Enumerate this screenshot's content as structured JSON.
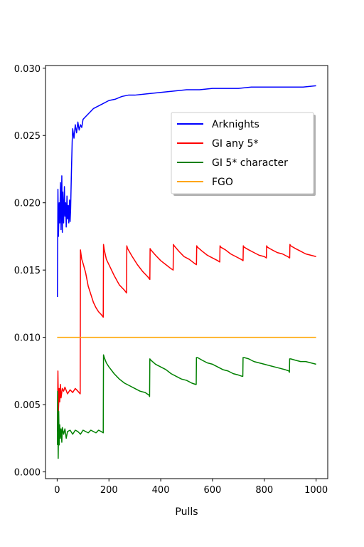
{
  "chart_data": {
    "type": "line",
    "title": "",
    "xlabel": "Pulls",
    "ylabel": "",
    "xlim": [
      -45,
      1045
    ],
    "ylim": [
      -0.0005,
      0.0302
    ],
    "xticks": [
      0,
      200,
      400,
      600,
      800,
      1000
    ],
    "xtick_labels": [
      "0",
      "200",
      "400",
      "600",
      "800",
      "1000"
    ],
    "yticks": [
      0.0,
      0.005,
      0.01,
      0.015,
      0.02,
      0.025,
      0.03
    ],
    "ytick_labels": [
      "0.000",
      "0.005",
      "0.010",
      "0.015",
      "0.020",
      "0.025",
      "0.030"
    ],
    "grid": false,
    "legend": {
      "position": "upper-right",
      "entries": [
        "Arknights",
        "GI any 5*",
        "GI 5* character",
        "FGO"
      ]
    },
    "series": [
      {
        "name": "Arknights",
        "color": "#0000ff",
        "x": [
          1,
          3,
          5,
          8,
          10,
          13,
          15,
          18,
          20,
          22,
          25,
          28,
          30,
          33,
          35,
          38,
          40,
          43,
          45,
          48,
          50,
          52,
          55,
          58,
          60,
          65,
          70,
          75,
          80,
          85,
          90,
          95,
          100,
          110,
          120,
          130,
          140,
          150,
          160,
          170,
          180,
          190,
          200,
          225,
          250,
          275,
          300,
          350,
          400,
          450,
          500,
          550,
          600,
          650,
          700,
          750,
          800,
          850,
          900,
          950,
          1000
        ],
        "y": [
          0.013,
          0.021,
          0.0175,
          0.02,
          0.0185,
          0.0215,
          0.018,
          0.022,
          0.0178,
          0.0208,
          0.0185,
          0.0212,
          0.019,
          0.02,
          0.0182,
          0.0205,
          0.0188,
          0.0198,
          0.0185,
          0.0202,
          0.0186,
          0.0195,
          0.0222,
          0.0245,
          0.0255,
          0.0248,
          0.0258,
          0.0252,
          0.026,
          0.0254,
          0.0258,
          0.0256,
          0.0262,
          0.0264,
          0.0266,
          0.0268,
          0.027,
          0.0271,
          0.0272,
          0.0273,
          0.0274,
          0.0275,
          0.0276,
          0.0277,
          0.0279,
          0.028,
          0.028,
          0.0281,
          0.0282,
          0.0283,
          0.0284,
          0.0284,
          0.0285,
          0.0285,
          0.0285,
          0.0286,
          0.0286,
          0.0286,
          0.0286,
          0.0286,
          0.0287
        ]
      },
      {
        "name": "GI any 5*",
        "color": "#ff0000",
        "x": [
          1,
          3,
          5,
          8,
          10,
          13,
          15,
          20,
          25,
          30,
          40,
          50,
          60,
          70,
          80,
          89,
          90,
          92,
          95,
          100,
          110,
          120,
          130,
          140,
          150,
          160,
          170,
          178,
          179,
          182,
          190,
          200,
          220,
          240,
          260,
          268,
          269,
          272,
          290,
          310,
          330,
          350,
          358,
          359,
          362,
          380,
          400,
          420,
          440,
          448,
          449,
          452,
          470,
          490,
          510,
          530,
          538,
          539,
          542,
          560,
          580,
          600,
          620,
          628,
          629,
          632,
          650,
          670,
          690,
          710,
          718,
          719,
          722,
          740,
          760,
          780,
          800,
          808,
          809,
          812,
          830,
          850,
          870,
          890,
          898,
          899,
          902,
          920,
          940,
          960,
          980,
          1000
        ],
        "y": [
          0.003,
          0.0075,
          0.0045,
          0.0062,
          0.0052,
          0.0065,
          0.0055,
          0.0062,
          0.006,
          0.0063,
          0.0058,
          0.0061,
          0.0059,
          0.0062,
          0.006,
          0.0058,
          0.0165,
          0.0162,
          0.0158,
          0.0155,
          0.0148,
          0.0138,
          0.0132,
          0.0126,
          0.0122,
          0.0119,
          0.0117,
          0.0115,
          0.0169,
          0.0165,
          0.0158,
          0.0154,
          0.0146,
          0.0139,
          0.0135,
          0.0133,
          0.0168,
          0.0166,
          0.016,
          0.0154,
          0.0149,
          0.0145,
          0.0143,
          0.0166,
          0.0165,
          0.0161,
          0.0157,
          0.0154,
          0.0151,
          0.015,
          0.0169,
          0.0168,
          0.0164,
          0.016,
          0.0158,
          0.0155,
          0.0154,
          0.0168,
          0.0167,
          0.0164,
          0.0161,
          0.0159,
          0.0157,
          0.0156,
          0.0168,
          0.0167,
          0.0165,
          0.0162,
          0.016,
          0.0158,
          0.0157,
          0.0168,
          0.0167,
          0.0165,
          0.0163,
          0.0161,
          0.016,
          0.0159,
          0.0168,
          0.0167,
          0.0165,
          0.0163,
          0.0162,
          0.016,
          0.0159,
          0.0169,
          0.0168,
          0.0166,
          0.0164,
          0.0162,
          0.0161,
          0.016
        ]
      },
      {
        "name": "GI 5* character",
        "color": "#008000",
        "x": [
          1,
          2,
          4,
          6,
          8,
          10,
          12,
          15,
          18,
          20,
          25,
          30,
          35,
          40,
          50,
          60,
          70,
          80,
          90,
          100,
          110,
          120,
          130,
          140,
          150,
          160,
          170,
          178,
          179,
          182,
          190,
          200,
          220,
          240,
          260,
          280,
          300,
          320,
          340,
          355,
          357,
          358,
          362,
          380,
          400,
          420,
          440,
          460,
          480,
          500,
          520,
          535,
          537,
          538,
          542,
          560,
          580,
          600,
          620,
          640,
          660,
          680,
          700,
          715,
          717,
          718,
          722,
          740,
          760,
          780,
          800,
          820,
          840,
          860,
          880,
          895,
          897,
          898,
          902,
          920,
          940,
          960,
          980,
          1000
        ],
        "y": [
          0.002,
          0.006,
          0.001,
          0.0045,
          0.002,
          0.0035,
          0.0025,
          0.0032,
          0.0022,
          0.0033,
          0.0028,
          0.0032,
          0.0025,
          0.003,
          0.0031,
          0.0028,
          0.0031,
          0.003,
          0.0028,
          0.0031,
          0.003,
          0.0029,
          0.0031,
          0.003,
          0.0029,
          0.0031,
          0.003,
          0.0029,
          0.0087,
          0.0085,
          0.0081,
          0.0078,
          0.0073,
          0.0069,
          0.0066,
          0.0064,
          0.0062,
          0.006,
          0.0059,
          0.0057,
          0.0056,
          0.0084,
          0.0083,
          0.008,
          0.0078,
          0.0076,
          0.0073,
          0.0071,
          0.0069,
          0.0068,
          0.0066,
          0.0065,
          0.0065,
          0.0085,
          0.0085,
          0.0083,
          0.0081,
          0.008,
          0.0078,
          0.0076,
          0.0075,
          0.0073,
          0.0072,
          0.0071,
          0.0071,
          0.0085,
          0.0085,
          0.0084,
          0.0082,
          0.0081,
          0.008,
          0.0079,
          0.0078,
          0.0077,
          0.0076,
          0.0075,
          0.0074,
          0.0084,
          0.0084,
          0.0083,
          0.0082,
          0.0082,
          0.0081,
          0.008
        ]
      },
      {
        "name": "FGO",
        "color": "#ffa500",
        "x": [
          0,
          1000
        ],
        "y": [
          0.01,
          0.01
        ]
      }
    ]
  }
}
